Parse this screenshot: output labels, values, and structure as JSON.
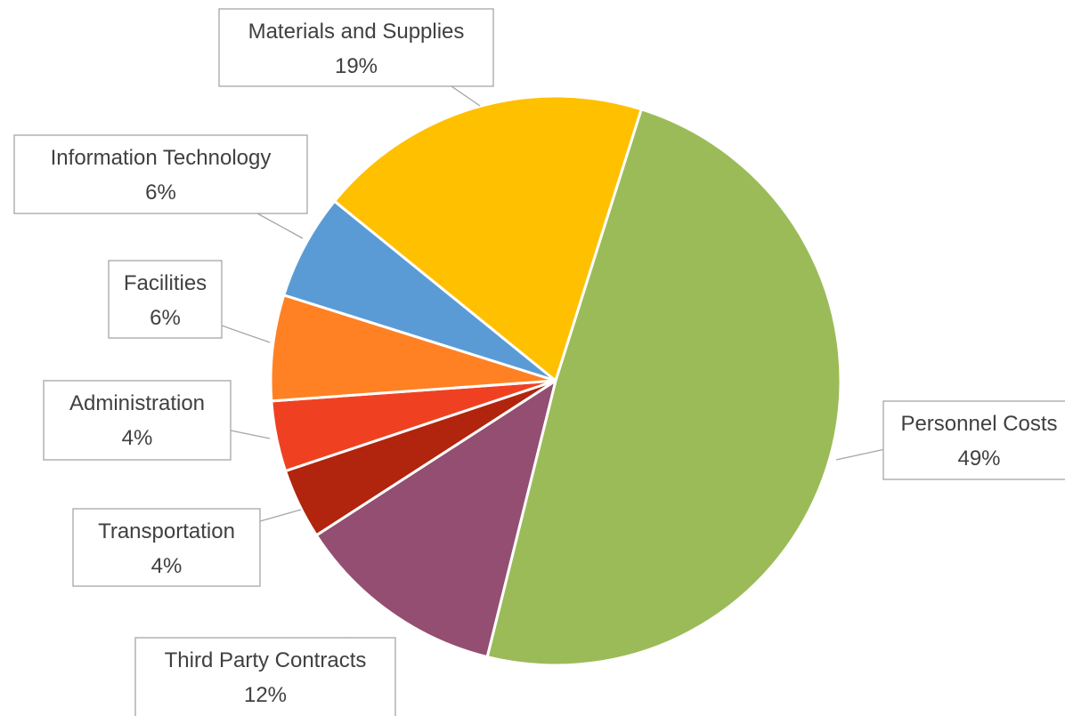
{
  "chart_data": {
    "type": "pie",
    "title": "",
    "slices": [
      {
        "label": "Personnel Costs",
        "value_label": "49%",
        "value": 49,
        "color": "#9BBB59"
      },
      {
        "label": "Third Party Contracts",
        "value_label": "12%",
        "value": 12,
        "color": "#934E71"
      },
      {
        "label": "Transportation",
        "value_label": "4%",
        "value": 4,
        "color": "#B1240D"
      },
      {
        "label": "Administration",
        "value_label": "4%",
        "value": 4,
        "color": "#EF4122"
      },
      {
        "label": "Facilities",
        "value_label": "6%",
        "value": 6,
        "color": "#FF8124"
      },
      {
        "label": "Information Technology",
        "value_label": "6%",
        "value": 6,
        "color": "#5B9BD5"
      },
      {
        "label": "Materials and Supplies",
        "value_label": "19%",
        "value": 19,
        "color": "#FFC000"
      }
    ]
  }
}
